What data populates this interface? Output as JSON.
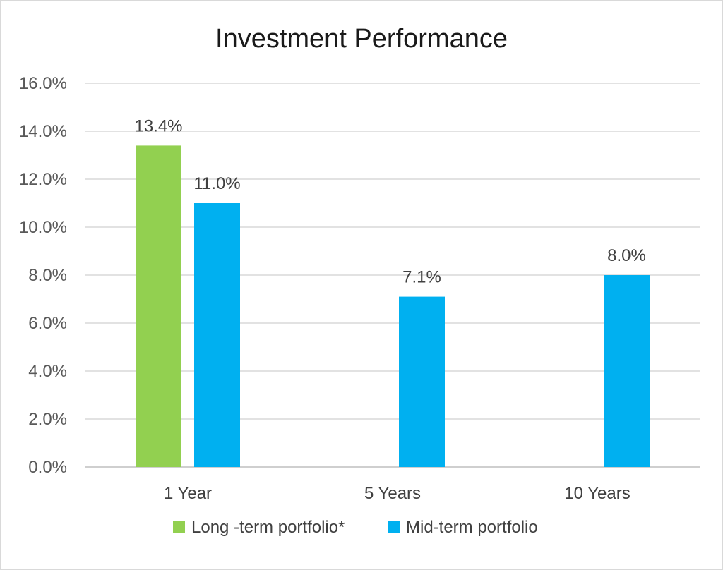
{
  "chart_data": {
    "type": "bar",
    "title": "Investment Performance",
    "categories": [
      "1 Year",
      "5 Years",
      "10 Years"
    ],
    "series": [
      {
        "name": "Long -term portfolio*",
        "color": "#92d050",
        "values": [
          13.4,
          null,
          null
        ],
        "labels": [
          "13.4%",
          "",
          ""
        ]
      },
      {
        "name": "Mid-term portfolio",
        "color": "#00b0f0",
        "values": [
          11.0,
          7.1,
          8.0
        ],
        "labels": [
          "11.0%",
          "7.1%",
          "8.0%"
        ]
      }
    ],
    "ylim": [
      0,
      16
    ],
    "yticks": [
      "0.0%",
      "2.0%",
      "4.0%",
      "6.0%",
      "8.0%",
      "10.0%",
      "12.0%",
      "14.0%",
      "16.0%"
    ],
    "grid": true,
    "legend": "bottom"
  }
}
